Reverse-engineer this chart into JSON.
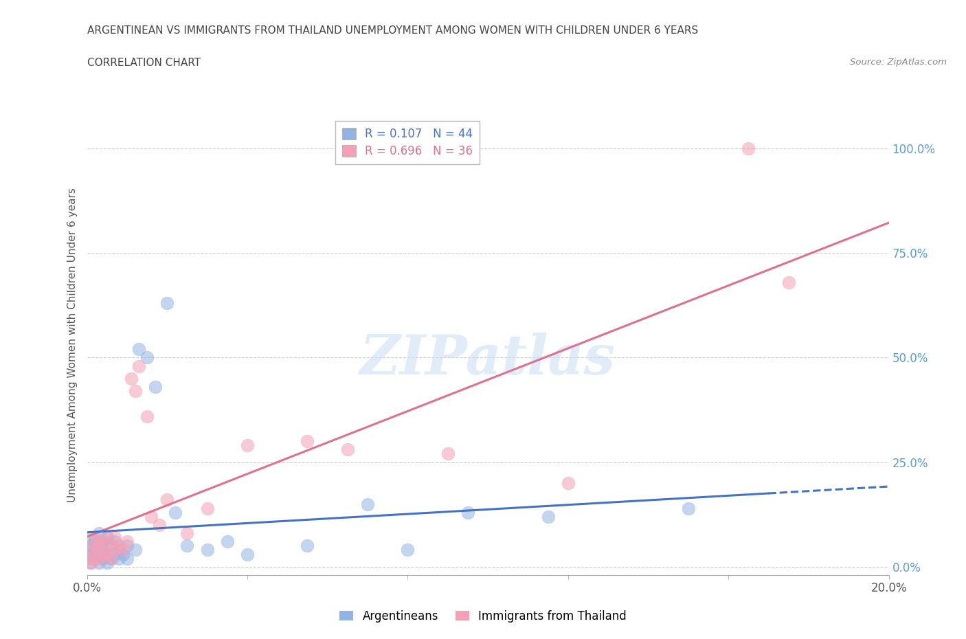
{
  "title_line1": "ARGENTINEAN VS IMMIGRANTS FROM THAILAND UNEMPLOYMENT AMONG WOMEN WITH CHILDREN UNDER 6 YEARS",
  "title_line2": "CORRELATION CHART",
  "source": "Source: ZipAtlas.com",
  "ylabel": "Unemployment Among Women with Children Under 6 years",
  "xmin": 0.0,
  "xmax": 0.2,
  "ymin": -0.02,
  "ymax": 1.08,
  "ytick_labels": [
    "0.0%",
    "25.0%",
    "50.0%",
    "75.0%",
    "100.0%"
  ],
  "ytick_vals": [
    0.0,
    0.25,
    0.5,
    0.75,
    1.0
  ],
  "xtick_labels": [
    "0.0%",
    "20.0%"
  ],
  "xtick_vals": [
    0.0,
    0.2
  ],
  "blue_color": "#92b4e3",
  "pink_color": "#f4a0b5",
  "blue_line_color": "#4472c4",
  "pink_line_color": "#e07090",
  "background_color": "#ffffff",
  "grid_color": "#cccccc",
  "watermark": "ZIPatlas",
  "arg_x": [
    0.0,
    0.0,
    0.001,
    0.001,
    0.001,
    0.001,
    0.002,
    0.002,
    0.002,
    0.003,
    0.003,
    0.003,
    0.003,
    0.004,
    0.004,
    0.004,
    0.005,
    0.005,
    0.005,
    0.006,
    0.006,
    0.007,
    0.007,
    0.008,
    0.008,
    0.009,
    0.01,
    0.01,
    0.012,
    0.013,
    0.015,
    0.017,
    0.02,
    0.022,
    0.025,
    0.03,
    0.035,
    0.04,
    0.055,
    0.07,
    0.08,
    0.095,
    0.115,
    0.15
  ],
  "arg_y": [
    0.02,
    0.04,
    0.01,
    0.03,
    0.05,
    0.07,
    0.02,
    0.04,
    0.06,
    0.01,
    0.03,
    0.05,
    0.08,
    0.02,
    0.04,
    0.06,
    0.01,
    0.03,
    0.07,
    0.02,
    0.05,
    0.03,
    0.06,
    0.02,
    0.04,
    0.03,
    0.02,
    0.05,
    0.04,
    0.52,
    0.5,
    0.43,
    0.63,
    0.13,
    0.05,
    0.04,
    0.06,
    0.03,
    0.05,
    0.15,
    0.04,
    0.13,
    0.12,
    0.14
  ],
  "thai_x": [
    0.0,
    0.001,
    0.001,
    0.002,
    0.002,
    0.002,
    0.003,
    0.003,
    0.003,
    0.004,
    0.004,
    0.005,
    0.005,
    0.006,
    0.006,
    0.007,
    0.007,
    0.008,
    0.009,
    0.01,
    0.011,
    0.012,
    0.013,
    0.015,
    0.016,
    0.018,
    0.02,
    0.025,
    0.03,
    0.04,
    0.055,
    0.065,
    0.09,
    0.12,
    0.165,
    0.175
  ],
  "thai_y": [
    0.02,
    0.01,
    0.04,
    0.02,
    0.05,
    0.07,
    0.02,
    0.04,
    0.06,
    0.03,
    0.06,
    0.03,
    0.07,
    0.02,
    0.05,
    0.04,
    0.07,
    0.05,
    0.04,
    0.06,
    0.45,
    0.42,
    0.48,
    0.36,
    0.12,
    0.1,
    0.16,
    0.08,
    0.14,
    0.29,
    0.3,
    0.28,
    0.27,
    0.2,
    1.0,
    0.68
  ]
}
